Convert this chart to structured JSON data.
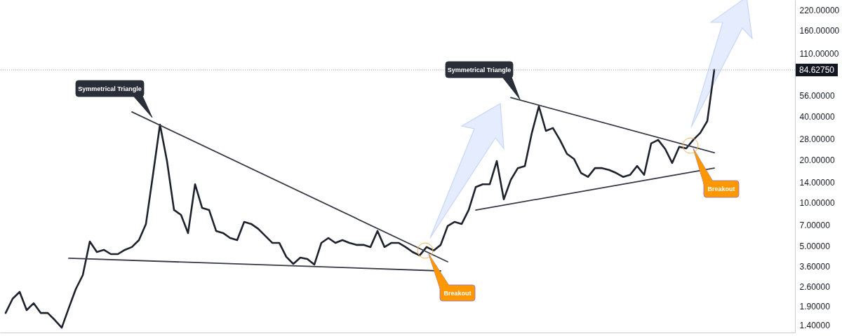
{
  "chart_data": {
    "type": "line",
    "log": "y",
    "categories": [
      null,
      null,
      null,
      null,
      null,
      null,
      null,
      null,
      null,
      null,
      null,
      null,
      null,
      null,
      null,
      null,
      null,
      null,
      null,
      null,
      null,
      null,
      null,
      null,
      null,
      null,
      null,
      null,
      null,
      null,
      null,
      null,
      null,
      null,
      null,
      null,
      null,
      null,
      null,
      null,
      null,
      null,
      null,
      null,
      null,
      null,
      null,
      null,
      null,
      null,
      null,
      null,
      null,
      null,
      null,
      null,
      null,
      null,
      null,
      null,
      null,
      null,
      null,
      null,
      null,
      null,
      null,
      null,
      null,
      null,
      null,
      null,
      null,
      null,
      null,
      null,
      null,
      null,
      null,
      null,
      null,
      null,
      null,
      null,
      null,
      null,
      null,
      null,
      null,
      null,
      null,
      null,
      null,
      null,
      null,
      null,
      null,
      null,
      null,
      null,
      null,
      null
    ],
    "series": [
      {
        "color": "#1e222d",
        "values": [
          1.71,
          2.15,
          2.4,
          1.79,
          2.0,
          1.71,
          1.71,
          1.53,
          1.35,
          1.85,
          2.51,
          3.14,
          5.39,
          4.55,
          4.71,
          4.4,
          4.4,
          4.71,
          4.93,
          5.51,
          7.14,
          15.7,
          35.2,
          19.6,
          8.94,
          8.26,
          6.17,
          13.5,
          9.25,
          8.94,
          6.38,
          6.17,
          5.7,
          5.51,
          7.38,
          7.14,
          6.6,
          5.9,
          5.27,
          5.27,
          4.21,
          3.76,
          4.16,
          4.07,
          3.72,
          5.27,
          5.7,
          5.27,
          5.51,
          5.27,
          5.1,
          5.1,
          4.93,
          6.38,
          4.93,
          5.27,
          5.27,
          4.93,
          4.55,
          4.31,
          4.93,
          4.66,
          5.1,
          6.9,
          7.38,
          7.14,
          8.94,
          12.9,
          13.5,
          13.5,
          19.6,
          10.6,
          14.5,
          17.5,
          18.1,
          30.8,
          47.2,
          31.8,
          33.3,
          27.5,
          22.0,
          20.3,
          16.2,
          15.2,
          17.5,
          17.5,
          17.0,
          16.2,
          15.2,
          15.7,
          18.1,
          15.7,
          26.0,
          27.5,
          23.8,
          19.0,
          24.6,
          24.0,
          27.5,
          30.8,
          37.2,
          84.6275
        ]
      },
      {
        "type": "line",
        "color": "#363a45",
        "values": [
          null,
          null,
          null,
          null,
          null,
          null,
          null,
          null,
          null,
          null,
          null,
          null,
          null,
          null,
          null,
          null,
          null,
          null,
          43.1,
          null,
          null,
          null,
          null,
          null,
          null,
          null,
          null,
          null,
          null,
          null,
          null,
          null,
          null,
          null,
          null,
          null,
          null,
          null,
          null,
          null,
          null,
          null,
          null,
          null,
          null,
          null,
          null,
          null,
          null,
          null,
          null,
          null,
          null,
          null,
          null,
          null,
          null,
          null,
          null,
          null,
          null,
          null,
          null,
          3.89,
          null,
          null,
          null,
          null,
          null,
          null,
          null,
          null,
          null,
          null,
          null,
          null,
          null,
          null,
          null,
          null,
          null,
          null,
          null,
          null,
          null,
          null,
          null,
          null,
          null,
          null,
          null,
          null,
          null,
          null,
          null,
          null,
          null,
          null,
          null,
          null,
          null,
          null
        ]
      },
      {
        "type": "line",
        "color": "#363a45",
        "values": [
          null,
          null,
          null,
          null,
          null,
          null,
          null,
          null,
          null,
          4.12,
          null,
          null,
          null,
          null,
          null,
          null,
          null,
          null,
          null,
          null,
          null,
          null,
          null,
          null,
          null,
          null,
          null,
          null,
          null,
          null,
          null,
          null,
          null,
          null,
          null,
          null,
          null,
          null,
          null,
          null,
          null,
          null,
          null,
          null,
          null,
          null,
          null,
          null,
          null,
          null,
          null,
          null,
          null,
          null,
          null,
          null,
          null,
          null,
          null,
          null,
          null,
          null,
          3.36,
          null,
          null,
          null,
          null,
          null,
          null,
          null,
          null,
          null,
          null,
          null,
          null,
          null,
          null,
          null,
          null,
          null,
          null,
          null,
          null,
          null,
          null,
          null,
          null,
          null,
          null,
          null,
          null,
          null,
          null,
          null,
          null,
          null,
          null,
          null,
          null,
          null,
          null,
          null
        ]
      },
      {
        "type": "line",
        "color": "#363a45",
        "values": [
          null,
          null,
          null,
          null,
          null,
          null,
          null,
          null,
          null,
          null,
          null,
          null,
          null,
          null,
          null,
          null,
          null,
          null,
          null,
          null,
          null,
          null,
          null,
          null,
          null,
          null,
          null,
          null,
          null,
          null,
          null,
          null,
          null,
          null,
          null,
          null,
          null,
          null,
          null,
          null,
          null,
          null,
          null,
          null,
          null,
          null,
          null,
          null,
          null,
          null,
          null,
          null,
          null,
          null,
          null,
          null,
          null,
          null,
          null,
          null,
          null,
          null,
          null,
          null,
          null,
          null,
          null,
          null,
          null,
          null,
          null,
          null,
          54.3,
          null,
          null,
          null,
          null,
          null,
          null,
          null,
          null,
          null,
          null,
          null,
          null,
          null,
          null,
          null,
          null,
          null,
          null,
          null,
          null,
          null,
          null,
          null,
          null,
          null,
          null,
          null,
          null,
          22.4
        ]
      },
      {
        "type": "line",
        "color": "#363a45",
        "values": [
          null,
          null,
          null,
          null,
          null,
          null,
          null,
          null,
          null,
          null,
          null,
          null,
          null,
          null,
          null,
          null,
          null,
          null,
          null,
          null,
          null,
          null,
          null,
          null,
          null,
          null,
          null,
          null,
          null,
          null,
          null,
          null,
          null,
          null,
          null,
          null,
          null,
          null,
          null,
          null,
          null,
          null,
          null,
          null,
          null,
          null,
          null,
          null,
          null,
          null,
          null,
          null,
          null,
          null,
          null,
          null,
          null,
          null,
          null,
          null,
          null,
          null,
          null,
          null,
          null,
          null,
          null,
          8.92,
          null,
          null,
          null,
          null,
          null,
          null,
          null,
          null,
          null,
          null,
          null,
          null,
          null,
          null,
          null,
          null,
          null,
          null,
          null,
          null,
          null,
          null,
          null,
          null,
          null,
          null,
          null,
          null,
          null,
          null,
          null,
          null,
          null,
          17.5
        ]
      }
    ],
    "ylim": [
      1.25,
      260
    ],
    "yticks": [
      {
        "value": 1.4,
        "label": "1.40000"
      },
      {
        "value": 1.9,
        "label": "1.90000"
      },
      {
        "value": 2.6,
        "label": "2.60000"
      },
      {
        "value": 3.6,
        "label": "3.60000"
      },
      {
        "value": 5,
        "label": "5.00000"
      },
      {
        "value": 7,
        "label": "7.00000"
      },
      {
        "value": 10,
        "label": "10.00000"
      },
      {
        "value": 14,
        "label": "14.00000"
      },
      {
        "value": 20,
        "label": "20.00000"
      },
      {
        "value": 28,
        "label": "28.00000"
      },
      {
        "value": 40,
        "label": "40.00000"
      },
      {
        "value": 56,
        "label": "56.00000"
      },
      {
        "value": 110,
        "label": "110.00000"
      },
      {
        "value": 160,
        "label": "160.00000"
      },
      {
        "value": 220,
        "label": "220.00000"
      }
    ],
    "ref_lines": [
      {
        "axis": "y",
        "value": 84.6275,
        "label": "84.62750",
        "color": "#9598a1",
        "line_style": "dotted"
      }
    ],
    "annotations": [
      "Symmetrical Triangle",
      "Symmetrical Triangle",
      "Breakout",
      "Breakout"
    ]
  }
}
